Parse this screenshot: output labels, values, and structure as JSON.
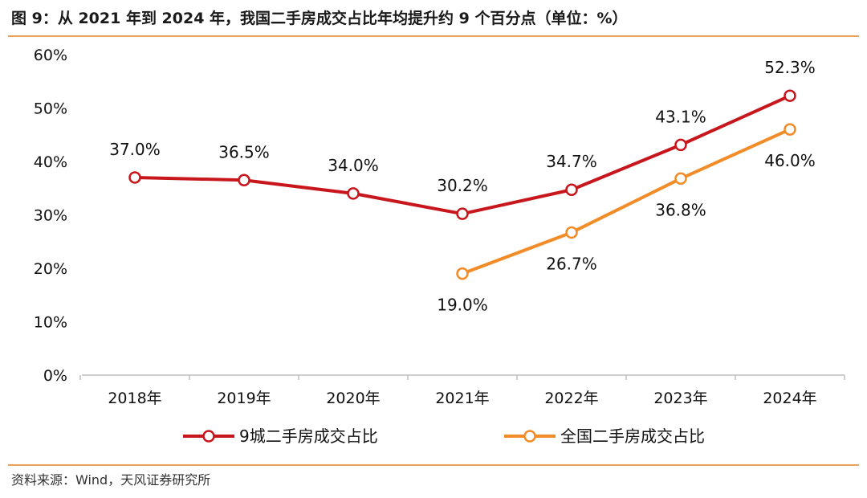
{
  "header": {
    "title": "图 9：从 2021 年到 2024 年，我国二手房成交占比年均提升约 9 个百分点（单位：%）"
  },
  "footer": {
    "source": "资料来源：Wind，天风证券研究所"
  },
  "colors": {
    "series_red": "#c8161d",
    "series_orange": "#f28c28",
    "rule": "#e8a35a",
    "axis": "#bfbfbf"
  },
  "chart_data": {
    "type": "line",
    "categories": [
      "2018年",
      "2019年",
      "2020年",
      "2021年",
      "2022年",
      "2023年",
      "2024年"
    ],
    "ylim": [
      0,
      60
    ],
    "yticks": [
      "0%",
      "10%",
      "20%",
      "30%",
      "40%",
      "50%",
      "60%"
    ],
    "grid": false,
    "legend_position": "bottom",
    "series": [
      {
        "name": "9城二手房成交占比",
        "values": [
          37.0,
          36.5,
          34.0,
          30.2,
          34.7,
          43.1,
          52.3
        ],
        "labels": [
          "37.0%",
          "36.5%",
          "34.0%",
          "30.2%",
          "34.7%",
          "43.1%",
          "52.3%"
        ]
      },
      {
        "name": "全国二手房成交占比",
        "values": [
          null,
          null,
          null,
          19.0,
          26.7,
          36.8,
          46.0
        ],
        "labels": [
          "",
          "",
          "",
          "19.0%",
          "26.7%",
          "36.8%",
          "46.0%"
        ]
      }
    ]
  }
}
